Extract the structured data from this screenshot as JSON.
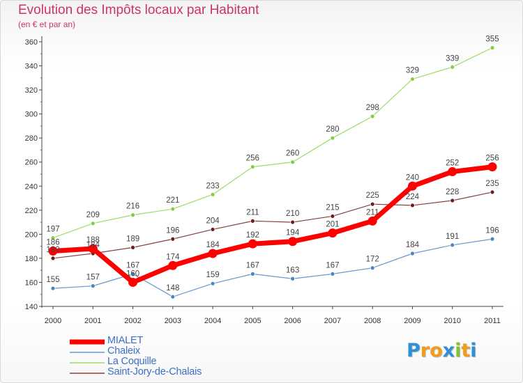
{
  "title": "Evolution des Impôts locaux par Habitant",
  "subtitle": "(en € et par an)",
  "logo": {
    "text": "Proxiti",
    "letters": [
      {
        "ch": "P",
        "color": "#2f8fd8"
      },
      {
        "ch": "r",
        "color": "#f39b1a"
      },
      {
        "ch": "o",
        "color": "#f39b1a"
      },
      {
        "ch": "x",
        "color": "#2f8fd8"
      },
      {
        "ch": "i",
        "color": "#86c232"
      },
      {
        "ch": "t",
        "color": "#f39b1a"
      },
      {
        "ch": "i",
        "color": "#2f8fd8"
      }
    ]
  },
  "chart_data": {
    "type": "line",
    "x": [
      "2000",
      "2001",
      "2002",
      "2003",
      "2004",
      "2005",
      "2006",
      "2007",
      "2008",
      "2009",
      "2010",
      "2011"
    ],
    "ylim": [
      140,
      360
    ],
    "yticks": [
      140,
      160,
      180,
      200,
      220,
      240,
      260,
      280,
      300,
      320,
      340,
      360
    ],
    "grid": false,
    "legend_position": "bottom-left",
    "series": [
      {
        "name": "MIALET",
        "color": "#ff0000",
        "marker": "#ff0000",
        "thick": true,
        "values": [
          186,
          188,
          160,
          174,
          184,
          192,
          194,
          201,
          211,
          240,
          252,
          256
        ],
        "labels": [
          "186",
          "188",
          "160",
          "174",
          "184",
          "192",
          "194",
          "201",
          "211",
          "240",
          "252",
          "256"
        ]
      },
      {
        "name": "Chaleix",
        "color": "#6699cc",
        "marker": "#4a86c4",
        "thick": false,
        "values": [
          155,
          157,
          167,
          148,
          159,
          167,
          163,
          167,
          172,
          184,
          191,
          196
        ],
        "labels": [
          "155",
          "157",
          "167",
          "148",
          "159",
          "167",
          "163",
          "167",
          "172",
          "184",
          "191",
          "196"
        ]
      },
      {
        "name": "La Coquille",
        "color": "#99dd66",
        "marker": "#88cc44",
        "thick": false,
        "values": [
          197,
          209,
          216,
          221,
          233,
          256,
          260,
          280,
          298,
          329,
          339,
          355
        ],
        "labels": [
          "197",
          "209",
          "216",
          "221",
          "233",
          "256",
          "260",
          "280",
          "298",
          "329",
          "339",
          "355"
        ]
      },
      {
        "name": "Saint-Jory-de-Chalais",
        "color": "#8a3f3f",
        "marker": "#6b1f1f",
        "thick": false,
        "values": [
          180,
          184,
          189,
          196,
          204,
          211,
          210,
          215,
          225,
          224,
          228,
          235
        ],
        "labels": [
          "180",
          "184",
          "189",
          "196",
          "204",
          "211",
          "210",
          "215",
          "225",
          "224",
          "228",
          "235"
        ]
      }
    ]
  }
}
